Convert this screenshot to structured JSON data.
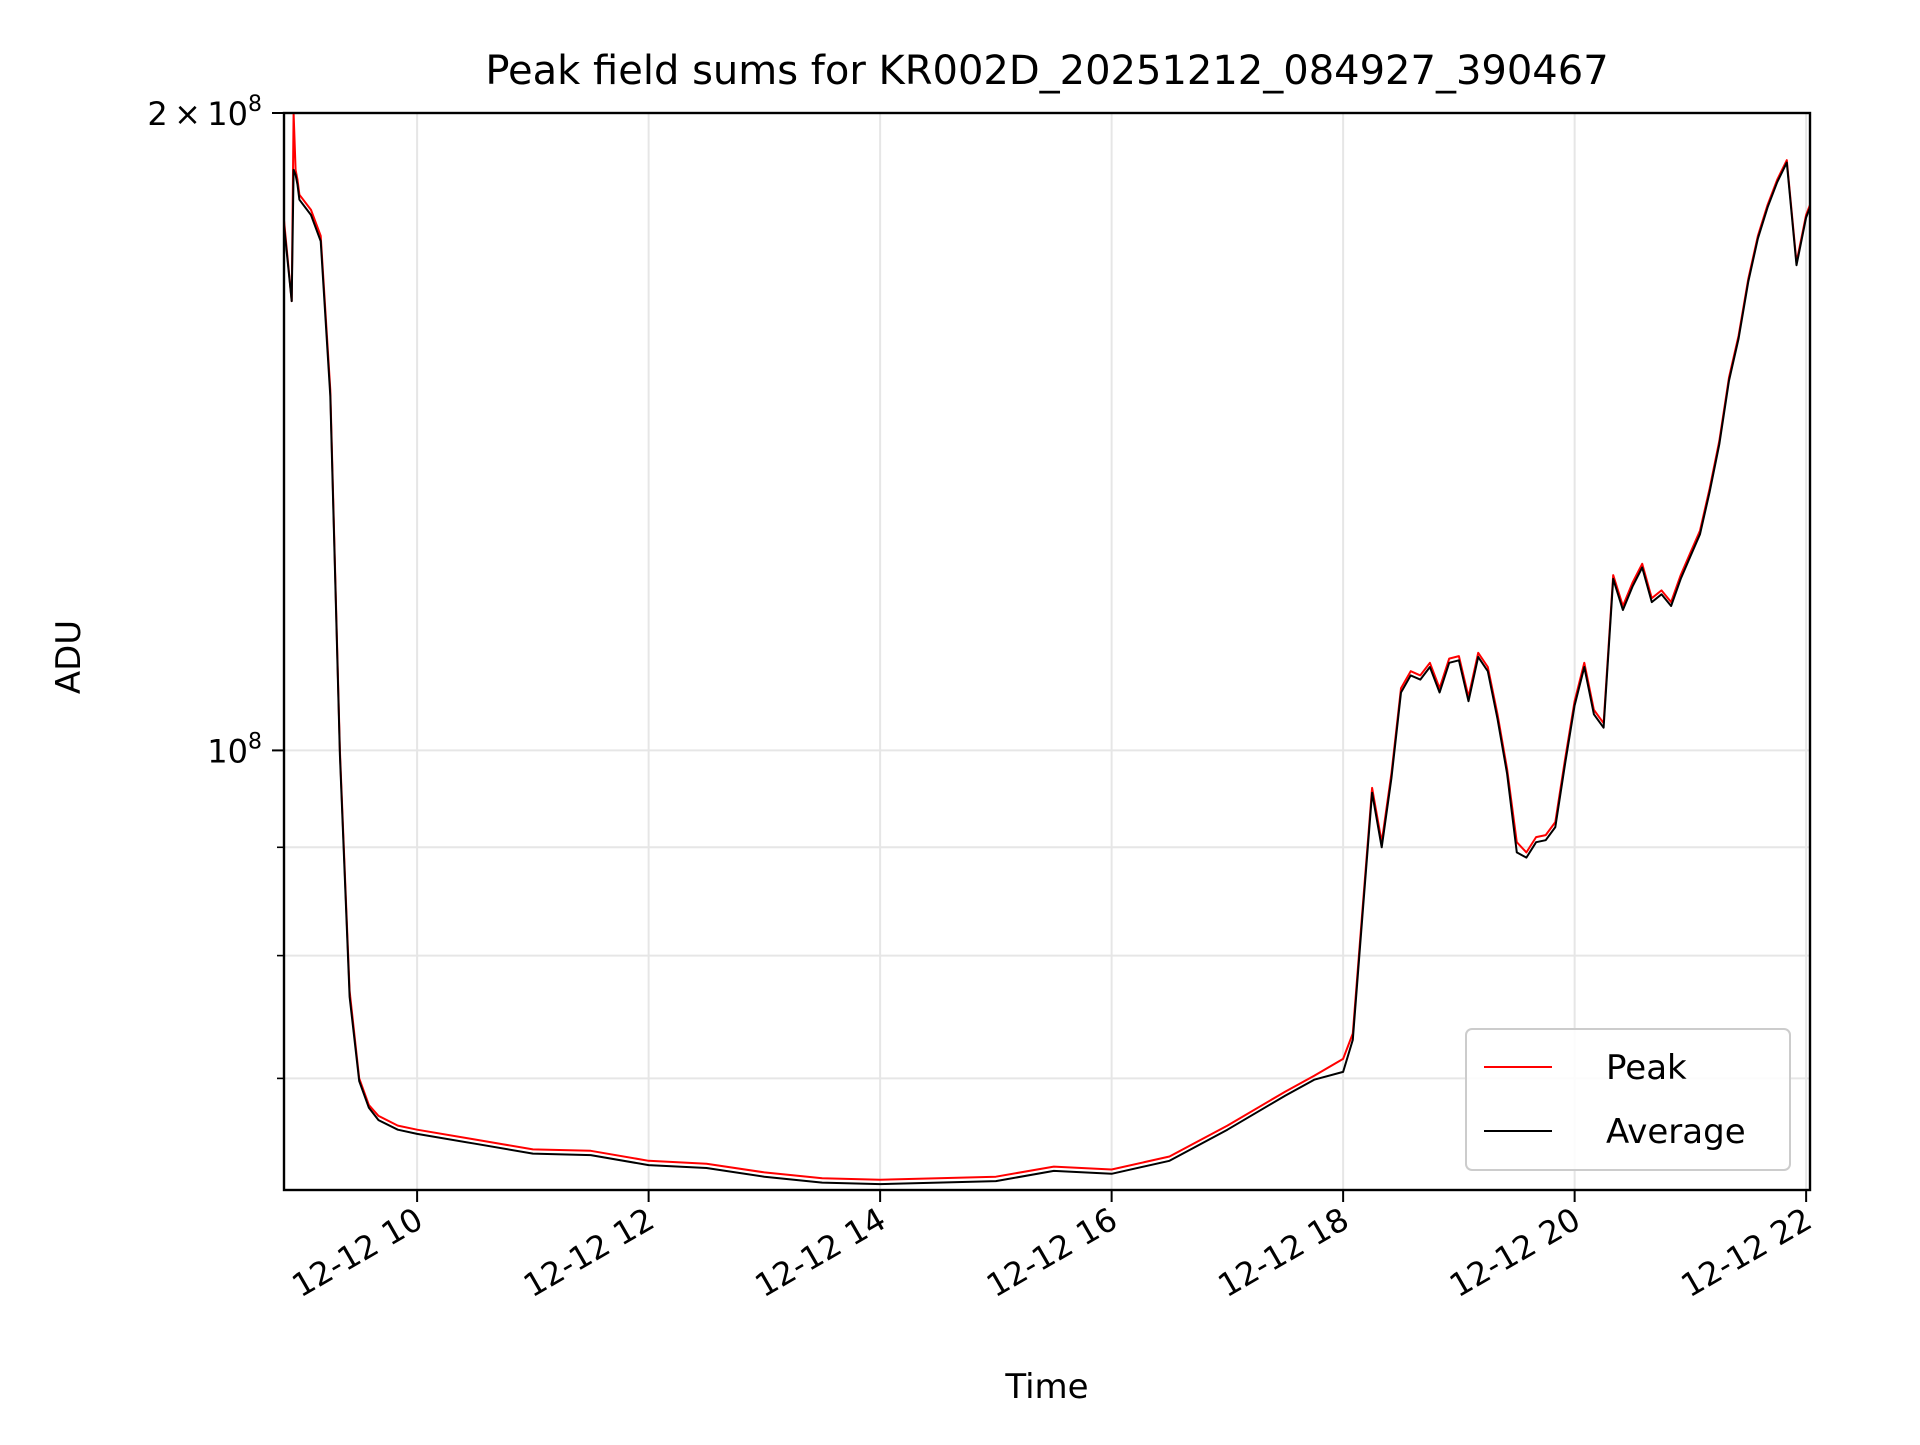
{
  "chart_data": {
    "type": "line",
    "title": "Peak field sums for KR002D_20251212_084927_390467",
    "xlabel": "Time",
    "ylabel": "ADU",
    "xlim": [
      "12-12 08:51",
      "12-12 22:02"
    ],
    "ylim": [
      62000000,
      200000000
    ],
    "yscale": "log",
    "grid": true,
    "legend": "lower-right",
    "x_tick_labels": [
      "12-12 10",
      "12-12 12",
      "12-12 14",
      "12-12 16",
      "12-12 18",
      "12-12 20",
      "12-12 22"
    ],
    "y_tick_labels": [
      {
        "base": "2",
        "exponent": "8",
        "value": 200000000
      },
      {
        "base": "10",
        "exponent": "8",
        "value": 100000000
      }
    ],
    "series": [
      {
        "name": "Peak",
        "color": "#ff0000",
        "x": [
          "08:51",
          "08:55",
          "08:56",
          "08:57",
          "08:58",
          "08:59",
          "09:05",
          "09:10",
          "09:15",
          "09:20",
          "09:25",
          "09:30",
          "09:35",
          "09:40",
          "09:50",
          "10:00",
          "10:30",
          "11:00",
          "11:30",
          "12:00",
          "12:30",
          "13:00",
          "13:30",
          "14:00",
          "14:30",
          "15:00",
          "15:30",
          "16:00",
          "16:30",
          "17:00",
          "17:30",
          "17:45",
          "18:00",
          "18:05",
          "18:10",
          "18:15",
          "18:20",
          "18:25",
          "18:30",
          "18:35",
          "18:40",
          "18:45",
          "18:50",
          "18:55",
          "19:00",
          "19:05",
          "19:10",
          "19:15",
          "19:20",
          "19:25",
          "19:30",
          "19:35",
          "19:40",
          "19:45",
          "19:50",
          "19:55",
          "20:00",
          "20:05",
          "20:10",
          "20:15",
          "20:20",
          "20:25",
          "20:30",
          "20:35",
          "20:40",
          "20:45",
          "20:50",
          "20:55",
          "21:00",
          "21:05",
          "21:10",
          "21:15",
          "21:20",
          "21:25",
          "21:30",
          "21:35",
          "21:40",
          "21:45",
          "21:50",
          "21:55",
          "22:00",
          "22:02"
        ],
        "y": [
          178000000,
          163000000,
          200000000,
          188000000,
          186000000,
          183000000,
          180000000,
          175000000,
          148000000,
          100000000,
          77000000,
          70000000,
          68000000,
          67200000,
          66500000,
          66200000,
          65500000,
          64800000,
          64700000,
          64000000,
          63800000,
          63200000,
          62800000,
          62700000,
          62800000,
          62900000,
          63600000,
          63400000,
          64300000,
          66500000,
          69000000,
          70200000,
          71500000,
          73500000,
          84000000,
          96000000,
          90500000,
          97500000,
          107000000,
          109000000,
          108500000,
          110000000,
          107000000,
          110500000,
          110800000,
          106000000,
          111200000,
          109500000,
          104000000,
          98000000,
          90500000,
          89500000,
          91000000,
          91200000,
          92500000,
          99000000,
          105500000,
          110000000,
          104500000,
          103000000,
          121000000,
          117000000,
          120000000,
          122500000,
          118000000,
          119000000,
          117500000,
          121000000,
          124000000,
          127000000,
          133000000,
          140000000,
          150000000,
          157000000,
          167000000,
          175000000,
          181000000,
          186000000,
          190000000,
          170000000,
          179000000,
          181000000
        ]
      },
      {
        "name": "Average",
        "color": "#000000",
        "x": [
          "08:51",
          "08:55",
          "08:56",
          "08:57",
          "08:58",
          "08:59",
          "09:05",
          "09:10",
          "09:15",
          "09:20",
          "09:25",
          "09:30",
          "09:35",
          "09:40",
          "09:50",
          "10:00",
          "10:30",
          "11:00",
          "11:30",
          "12:00",
          "12:30",
          "13:00",
          "13:30",
          "14:00",
          "14:30",
          "15:00",
          "15:30",
          "16:00",
          "16:30",
          "17:00",
          "17:30",
          "17:45",
          "18:00",
          "18:05",
          "18:10",
          "18:15",
          "18:20",
          "18:25",
          "18:30",
          "18:35",
          "18:40",
          "18:45",
          "18:50",
          "18:55",
          "19:00",
          "19:05",
          "19:10",
          "19:15",
          "19:20",
          "19:25",
          "19:30",
          "19:35",
          "19:40",
          "19:45",
          "19:50",
          "19:55",
          "20:00",
          "20:05",
          "20:10",
          "20:15",
          "20:20",
          "20:25",
          "20:30",
          "20:35",
          "20:40",
          "20:45",
          "20:50",
          "20:55",
          "21:00",
          "21:05",
          "21:10",
          "21:15",
          "21:20",
          "21:25",
          "21:30",
          "21:35",
          "21:40",
          "21:45",
          "21:50",
          "21:55",
          "22:00",
          "22:02"
        ],
        "y": [
          177000000,
          163000000,
          188000000,
          187000000,
          185000000,
          182000000,
          179000000,
          174000000,
          147000000,
          99500000,
          76500000,
          69800000,
          67800000,
          66900000,
          66200000,
          65900000,
          65200000,
          64500000,
          64400000,
          63700000,
          63500000,
          62900000,
          62500000,
          62400000,
          62500000,
          62600000,
          63300000,
          63100000,
          64000000,
          66200000,
          68700000,
          69900000,
          70500000,
          73000000,
          83500000,
          95500000,
          90000000,
          97000000,
          106500000,
          108500000,
          108000000,
          109500000,
          106500000,
          110000000,
          110300000,
          105500000,
          110700000,
          109000000,
          103500000,
          97500000,
          89500000,
          89000000,
          90500000,
          90700000,
          92000000,
          98500000,
          105000000,
          109500000,
          104000000,
          102500000,
          120500000,
          116500000,
          119500000,
          122000000,
          117500000,
          118500000,
          117000000,
          120500000,
          123500000,
          126500000,
          132500000,
          139500000,
          149500000,
          156500000,
          166500000,
          174500000,
          180500000,
          185500000,
          189500000,
          169500000,
          178500000,
          180500000
        ]
      }
    ]
  }
}
